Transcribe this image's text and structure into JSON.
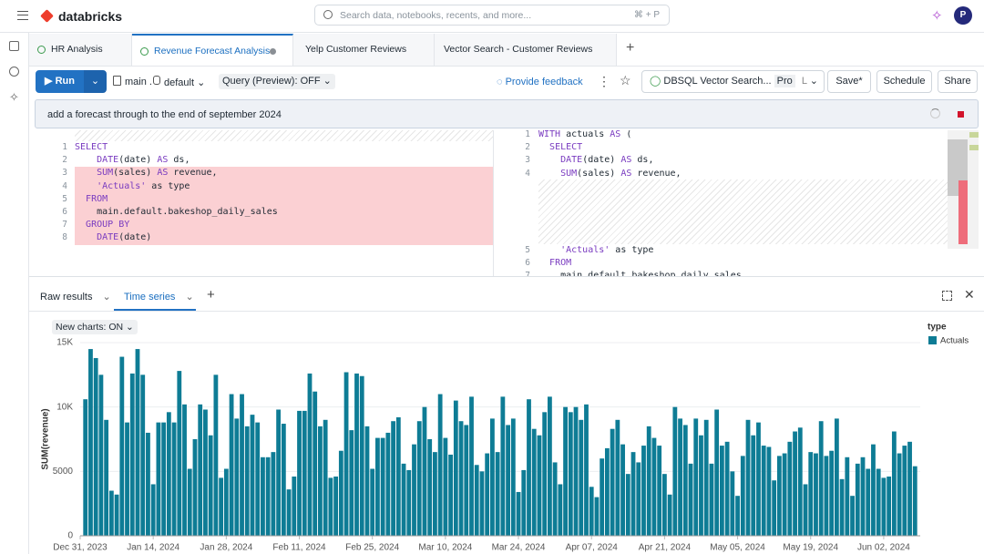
{
  "header": {
    "brand": "databricks",
    "search_placeholder": "Search data, notebooks, recents, and more...",
    "search_shortcut": "⌘ + P",
    "avatar": "P"
  },
  "tabs": [
    "HR Analysis",
    "Revenue Forecast Analysis",
    "Yelp Customer Reviews",
    "Vector Search - Customer Reviews"
  ],
  "toolbar": {
    "run": "Run",
    "catalog": "main",
    "schema": "default",
    "query_mode": "Query (Preview): OFF",
    "feedback": "Provide feedback",
    "warehouse": "DBSQL Vector Search...",
    "tier": "Pro",
    "size": "L",
    "save": "Save*",
    "schedule": "Schedule",
    "share": "Share"
  },
  "prompt": "add a forecast through to the end of september 2024",
  "editor": {
    "original": [
      {
        "line": 1,
        "code": "SELECT"
      },
      {
        "line": 2,
        "code": "    DATE(date) AS ds,"
      },
      {
        "line": 3,
        "code": "    SUM(sales) AS revenue,"
      },
      {
        "line": 4,
        "code": "    'Actuals' as type"
      },
      {
        "line": 5,
        "code": "  FROM"
      },
      {
        "line": 6,
        "code": "    main.default.bakeshop_daily_sales"
      },
      {
        "line": 7,
        "code": "  GROUP BY"
      },
      {
        "line": 8,
        "code": "    DATE(date)"
      }
    ],
    "suggested": [
      {
        "line": 1,
        "code": "WITH actuals AS ("
      },
      {
        "line": 2,
        "code": "  SELECT"
      },
      {
        "line": 3,
        "code": "    DATE(date) AS ds,"
      },
      {
        "line": 4,
        "code": "    SUM(sales) AS revenue,"
      },
      {
        "line": 5,
        "code": "    'Actuals' as type"
      },
      {
        "line": 6,
        "code": "  FROM"
      },
      {
        "line": 7,
        "code": "    main.default.bakeshop_daily_sales"
      }
    ]
  },
  "results": {
    "tabs": [
      "Raw results",
      "Time series"
    ],
    "new_charts": "New charts: ON"
  },
  "chart_data": {
    "type": "bar",
    "ylabel": "SUM(revenue)",
    "legend_title": "type",
    "legend_position": "top-right",
    "grid": true,
    "xlim": [
      "2023-12-31",
      "2024-06-09"
    ],
    "xticks": [
      {
        "value": "2023-12-31",
        "label": "Dec 31, 2023"
      },
      {
        "value": "2024-01-14",
        "label": "Jan 14, 2024"
      },
      {
        "value": "2024-01-28",
        "label": "Jan 28, 2024"
      },
      {
        "value": "2024-02-11",
        "label": "Feb 11, 2024"
      },
      {
        "value": "2024-02-25",
        "label": "Feb 25, 2024"
      },
      {
        "value": "2024-03-10",
        "label": "Mar 10, 2024"
      },
      {
        "value": "2024-03-24",
        "label": "Mar 24, 2024"
      },
      {
        "value": "2024-04-07",
        "label": "Apr 07, 2024"
      },
      {
        "value": "2024-04-21",
        "label": "Apr 21, 2024"
      },
      {
        "value": "2024-05-05",
        "label": "May 05, 2024"
      },
      {
        "value": "2024-05-19",
        "label": "May 19, 2024"
      },
      {
        "value": "2024-06-02",
        "label": "Jun 02, 2024"
      }
    ],
    "ylim": [
      0,
      15000
    ],
    "yticks": [
      0,
      5000,
      {
        "value": 10000,
        "label": "10K"
      },
      {
        "value": 15000,
        "label": "15K"
      }
    ],
    "x": [
      "2024-01-01",
      "2024-01-02",
      "2024-01-03",
      "2024-01-04",
      "2024-01-05",
      "2024-01-06",
      "2024-01-07",
      "2024-01-08",
      "2024-01-09",
      "2024-01-10",
      "2024-01-11",
      "2024-01-12",
      "2024-01-13",
      "2024-01-14",
      "2024-01-15",
      "2024-01-16",
      "2024-01-17",
      "2024-01-18",
      "2024-01-19",
      "2024-01-20",
      "2024-01-21",
      "2024-01-22",
      "2024-01-23",
      "2024-01-24",
      "2024-01-25",
      "2024-01-26",
      "2024-01-27",
      "2024-01-28",
      "2024-01-29",
      "2024-01-30",
      "2024-01-31",
      "2024-02-01",
      "2024-02-02",
      "2024-02-03",
      "2024-02-04",
      "2024-02-05",
      "2024-02-06",
      "2024-02-07",
      "2024-02-08",
      "2024-02-09",
      "2024-02-10",
      "2024-02-11",
      "2024-02-12",
      "2024-02-13",
      "2024-02-14",
      "2024-02-15",
      "2024-02-16",
      "2024-02-17",
      "2024-02-18",
      "2024-02-19",
      "2024-02-20",
      "2024-02-21",
      "2024-02-22",
      "2024-02-23",
      "2024-02-24",
      "2024-02-25",
      "2024-02-26",
      "2024-02-27",
      "2024-02-28",
      "2024-02-29",
      "2024-03-01",
      "2024-03-02",
      "2024-03-03",
      "2024-03-04",
      "2024-03-05",
      "2024-03-06",
      "2024-03-07",
      "2024-03-08",
      "2024-03-09",
      "2024-03-10",
      "2024-03-11",
      "2024-03-12",
      "2024-03-13",
      "2024-03-14",
      "2024-03-15",
      "2024-03-16",
      "2024-03-17",
      "2024-03-18",
      "2024-03-19",
      "2024-03-20",
      "2024-03-21",
      "2024-03-22",
      "2024-03-23",
      "2024-03-24",
      "2024-03-25",
      "2024-03-26",
      "2024-03-27",
      "2024-03-28",
      "2024-03-29",
      "2024-03-30",
      "2024-03-31",
      "2024-04-01",
      "2024-04-02",
      "2024-04-03",
      "2024-04-04",
      "2024-04-05",
      "2024-04-06",
      "2024-04-07",
      "2024-04-08",
      "2024-04-09",
      "2024-04-10",
      "2024-04-11",
      "2024-04-12",
      "2024-04-13",
      "2024-04-14",
      "2024-04-15",
      "2024-04-16",
      "2024-04-17",
      "2024-04-18",
      "2024-04-19",
      "2024-04-20",
      "2024-04-21",
      "2024-04-22",
      "2024-04-23",
      "2024-04-24",
      "2024-04-25",
      "2024-04-26",
      "2024-04-27",
      "2024-04-28",
      "2024-04-29",
      "2024-04-30",
      "2024-05-01",
      "2024-05-02",
      "2024-05-03",
      "2024-05-04",
      "2024-05-05",
      "2024-05-06",
      "2024-05-07",
      "2024-05-08",
      "2024-05-09",
      "2024-05-10",
      "2024-05-11",
      "2024-05-12",
      "2024-05-13",
      "2024-05-14",
      "2024-05-15",
      "2024-05-16",
      "2024-05-17",
      "2024-05-18",
      "2024-05-19",
      "2024-05-20",
      "2024-05-21",
      "2024-05-22",
      "2024-05-23",
      "2024-05-24",
      "2024-05-25",
      "2024-05-26",
      "2024-05-27",
      "2024-05-28",
      "2024-05-29",
      "2024-05-30",
      "2024-05-31",
      "2024-06-01",
      "2024-06-02",
      "2024-06-03",
      "2024-06-04",
      "2024-06-05",
      "2024-06-06",
      "2024-06-07",
      "2024-06-08"
    ],
    "series": [
      {
        "name": "Actuals",
        "color": "#0e7c95",
        "values": [
          10600,
          14500,
          13800,
          12500,
          9000,
          3500,
          3200,
          13900,
          8800,
          12600,
          14500,
          12500,
          8000,
          4000,
          8800,
          8800,
          9600,
          8800,
          12800,
          10200,
          5200,
          7500,
          10200,
          9800,
          7800,
          12500,
          4500,
          5200,
          11000,
          9100,
          11000,
          8500,
          9400,
          8800,
          6100,
          6100,
          6500,
          9800,
          8700,
          3600,
          4600,
          9700,
          9700,
          12600,
          11200,
          8500,
          9000,
          4500,
          4600,
          6600,
          12700,
          8200,
          12600,
          12400,
          8500,
          5200,
          7600,
          7600,
          8000,
          8900,
          9200,
          5600,
          5100,
          7100,
          8900,
          10000,
          7500,
          6500,
          11000,
          7600,
          6300,
          10500,
          8900,
          8600,
          10800,
          5500,
          5000,
          6400,
          9100,
          6500,
          10800,
          8600,
          9100,
          3400,
          5100,
          10600,
          8300,
          7800,
          9600,
          10800,
          5700,
          4000,
          10000,
          9600,
          10000,
          9000,
          10200,
          3800,
          3000,
          6000,
          6800,
          8300,
          9000,
          7100,
          4800,
          6500,
          5700,
          7000,
          8500,
          7600,
          7000,
          4800,
          3200,
          10000,
          9100,
          8600,
          5600,
          9100,
          7800,
          9000,
          5600,
          9800,
          7000,
          7300,
          5000,
          3100,
          6200,
          9000,
          7800,
          8800,
          7000,
          6900,
          4300,
          6200,
          6400,
          7300,
          8100,
          8400,
          4000,
          6500,
          6400,
          8900,
          6200,
          6600,
          9100,
          4400,
          6100,
          3100,
          5600,
          6100,
          5200,
          7100,
          5200,
          4500,
          4600,
          8100,
          6400,
          7000,
          7300,
          5400
        ]
      }
    ]
  }
}
